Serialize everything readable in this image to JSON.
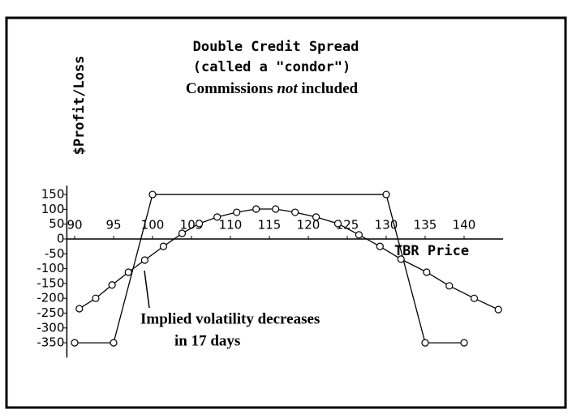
{
  "chart_data": {
    "type": "line",
    "title": "Double Credit Spread",
    "subtitle": "(called a \"condor\")",
    "note": {
      "before": "Commissions ",
      "emphasis": "not",
      "after": " included"
    },
    "ylabel": "$Profit/Loss",
    "xlabel": "TBR Price",
    "annotation": [
      "Implied volatility decreases",
      "in 17 days"
    ],
    "xlim": [
      89,
      145
    ],
    "ylim": [
      -400,
      180
    ],
    "xticks": [
      90,
      95,
      100,
      105,
      110,
      115,
      120,
      125,
      130,
      135,
      140
    ],
    "yticks": [
      150,
      100,
      50,
      0,
      -50,
      -100,
      -150,
      -200,
      -250,
      -300,
      -350
    ],
    "series": [
      {
        "color": "#000000",
        "x": [
          90,
          95,
          100,
          130,
          135,
          140
        ],
        "values": [
          -350,
          -350,
          150,
          150,
          -350,
          -350
        ]
      },
      {
        "color": "#000000",
        "x": [
          90.6,
          92.7,
          94.8,
          96.9,
          99,
          101.4,
          103.8,
          106,
          108.3,
          110.8,
          113.3,
          115.8,
          118.3,
          121,
          123.8,
          126.5,
          129.2,
          131.9,
          135.2,
          138.1,
          141.3,
          144.4
        ],
        "values": [
          -235,
          -200,
          -155,
          -112,
          -71,
          -25,
          19,
          52,
          74,
          90,
          101,
          101,
          90,
          74,
          52,
          14,
          -25,
          -68,
          -112,
          -158,
          -200,
          -238
        ]
      }
    ]
  }
}
